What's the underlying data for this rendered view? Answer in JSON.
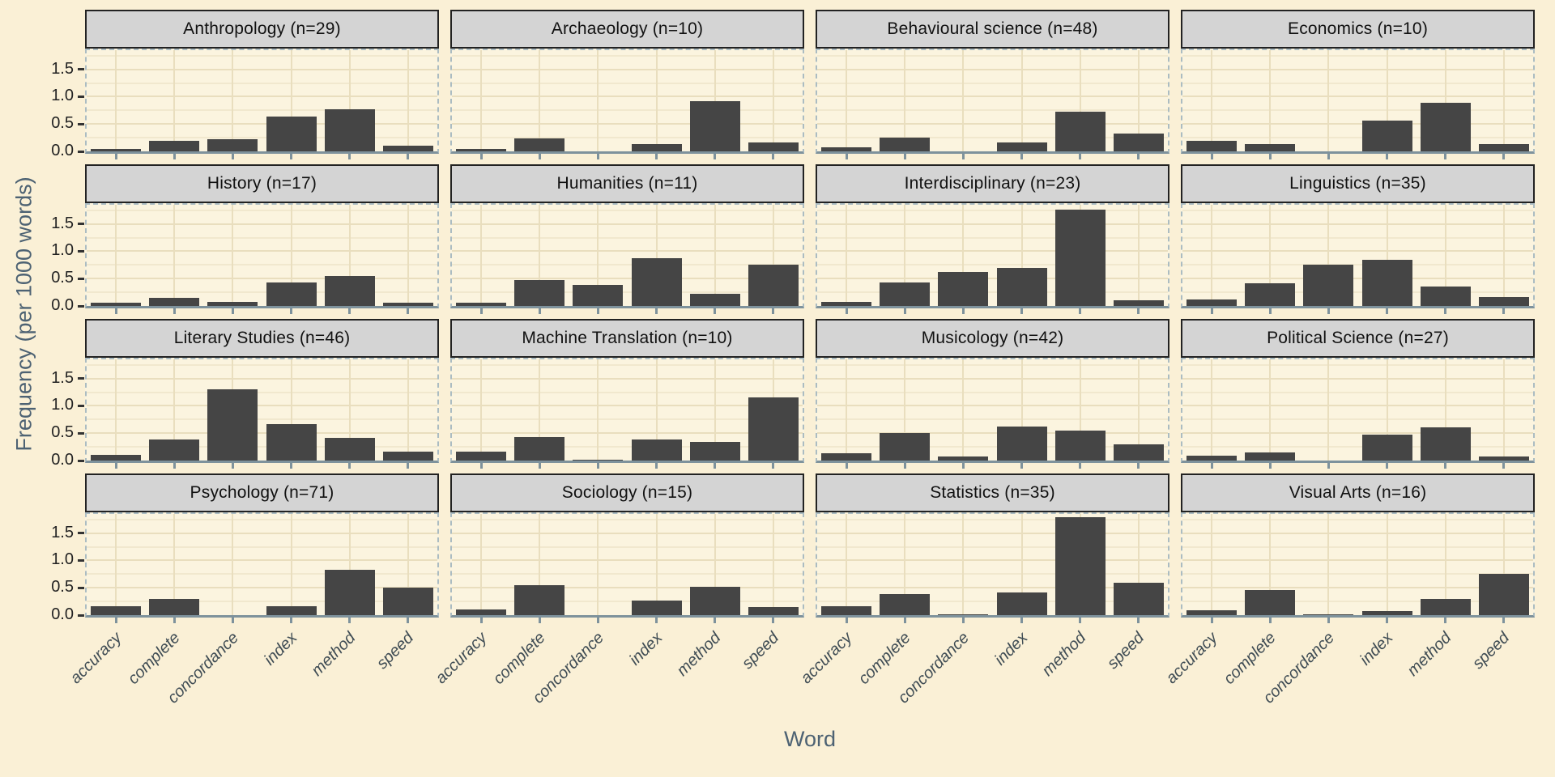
{
  "chart_data": {
    "type": "bar",
    "title": "",
    "xlabel": "Word",
    "ylabel": "Frequency (per 1000 words)",
    "categories": [
      "accuracy",
      "complete",
      "concordance",
      "index",
      "method",
      "speed"
    ],
    "y_ticks": [
      0,
      0.5,
      1.0,
      1.5
    ],
    "y_tick_labels": [
      "0.0",
      "0.5",
      "1.0",
      "1.5"
    ],
    "ylim": [
      0,
      1.85
    ],
    "grid": "horizontal major every 0.5, minor every 0.25; vertical major at category centers",
    "legend": "none",
    "facet_layout": {
      "rows": 4,
      "cols": 4,
      "strip_position": "top"
    },
    "facets": [
      {
        "label": "Anthropology (n=29)",
        "values": [
          0.04,
          0.19,
          0.22,
          0.64,
          0.77,
          0.11
        ]
      },
      {
        "label": "Archaeology (n=10)",
        "values": [
          0.05,
          0.23,
          0.0,
          0.14,
          0.92,
          0.16
        ]
      },
      {
        "label": "Behavioural science (n=48)",
        "values": [
          0.07,
          0.25,
          0.0,
          0.16,
          0.73,
          0.33
        ]
      },
      {
        "label": "Economics (n=10)",
        "values": [
          0.19,
          0.14,
          0.0,
          0.57,
          0.89,
          0.13
        ]
      },
      {
        "label": "History (n=17)",
        "values": [
          0.06,
          0.15,
          0.08,
          0.43,
          0.55,
          0.06
        ]
      },
      {
        "label": "Humanities (n=11)",
        "values": [
          0.06,
          0.48,
          0.39,
          0.87,
          0.22,
          0.75
        ]
      },
      {
        "label": "Interdisciplinary (n=23)",
        "values": [
          0.08,
          0.43,
          0.62,
          0.7,
          1.76,
          0.1
        ]
      },
      {
        "label": "Linguistics (n=35)",
        "values": [
          0.12,
          0.42,
          0.75,
          0.85,
          0.35,
          0.17
        ]
      },
      {
        "label": "Literary Studies (n=46)",
        "values": [
          0.11,
          0.39,
          1.31,
          0.67,
          0.41,
          0.17
        ]
      },
      {
        "label": "Machine Translation (n=10)",
        "values": [
          0.17,
          0.43,
          0.02,
          0.38,
          0.34,
          1.16
        ]
      },
      {
        "label": "Musicology (n=42)",
        "values": [
          0.13,
          0.5,
          0.08,
          0.62,
          0.55,
          0.3
        ]
      },
      {
        "label": "Political Science (n=27)",
        "values": [
          0.09,
          0.15,
          0.0,
          0.48,
          0.6,
          0.07
        ]
      },
      {
        "label": "Psychology (n=71)",
        "values": [
          0.17,
          0.3,
          0.0,
          0.17,
          0.83,
          0.51
        ]
      },
      {
        "label": "Sociology (n=15)",
        "values": [
          0.1,
          0.55,
          0.0,
          0.27,
          0.52,
          0.15
        ]
      },
      {
        "label": "Statistics (n=35)",
        "values": [
          0.17,
          0.39,
          0.02,
          0.42,
          1.79,
          0.59
        ]
      },
      {
        "label": "Visual Arts (n=16)",
        "values": [
          0.09,
          0.46,
          0.02,
          0.07,
          0.3,
          0.76
        ]
      }
    ]
  },
  "colors": {
    "page_bg": "#FAF0D6",
    "panel_bg": "#FBF4DF",
    "grid_major": "#E9DEBE",
    "grid_minor": "#F1E8CE",
    "bar": "#454545",
    "strip_bg": "#D4D4D4",
    "strip_border": "#222222",
    "strip_text": "#111111",
    "axis_line": "#7E929C",
    "panel_border": "#ABBCC2",
    "axis_title": "#4D6273",
    "x_tick_label": "#3F4C54",
    "y_tick_label": "#222222"
  }
}
